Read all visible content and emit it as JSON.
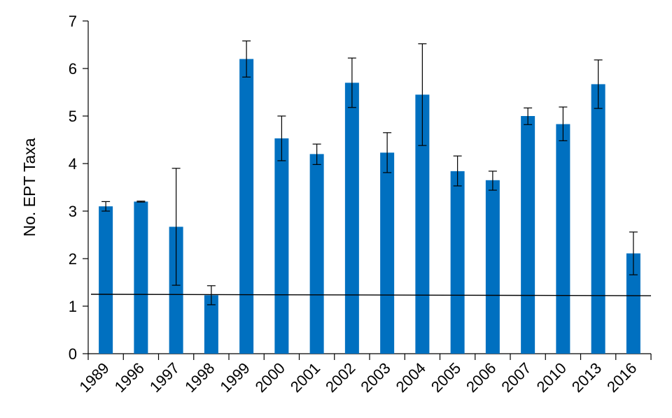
{
  "chart_data": {
    "type": "bar",
    "title": "",
    "xlabel": "",
    "ylabel": "No. EPT Taxa",
    "ylim": [
      0,
      7
    ],
    "yticks": [
      0,
      1,
      2,
      3,
      4,
      5,
      6,
      7
    ],
    "grid": false,
    "legend": "none",
    "categories": [
      "1989",
      "1996",
      "1997",
      "1998",
      "1999",
      "2000",
      "2001",
      "2002",
      "2003",
      "2004",
      "2005",
      "2006",
      "2007",
      "2010",
      "2013",
      "2016"
    ],
    "values": [
      3.1,
      3.2,
      2.67,
      1.23,
      6.2,
      4.53,
      4.2,
      5.7,
      4.23,
      5.45,
      3.84,
      3.65,
      5.0,
      4.83,
      5.67,
      2.11
    ],
    "error_low": [
      3.0,
      3.19,
      1.44,
      1.03,
      5.82,
      4.06,
      3.98,
      5.18,
      3.81,
      4.38,
      3.53,
      3.44,
      4.82,
      4.48,
      5.16,
      1.66
    ],
    "error_high": [
      3.2,
      3.21,
      3.9,
      1.43,
      6.58,
      5.0,
      4.41,
      6.22,
      4.65,
      6.52,
      4.16,
      3.84,
      5.17,
      5.19,
      6.18,
      2.56
    ],
    "reference_line": {
      "y_start": 1.25,
      "y_end": 1.22
    },
    "bar_color": "#0070c0"
  }
}
